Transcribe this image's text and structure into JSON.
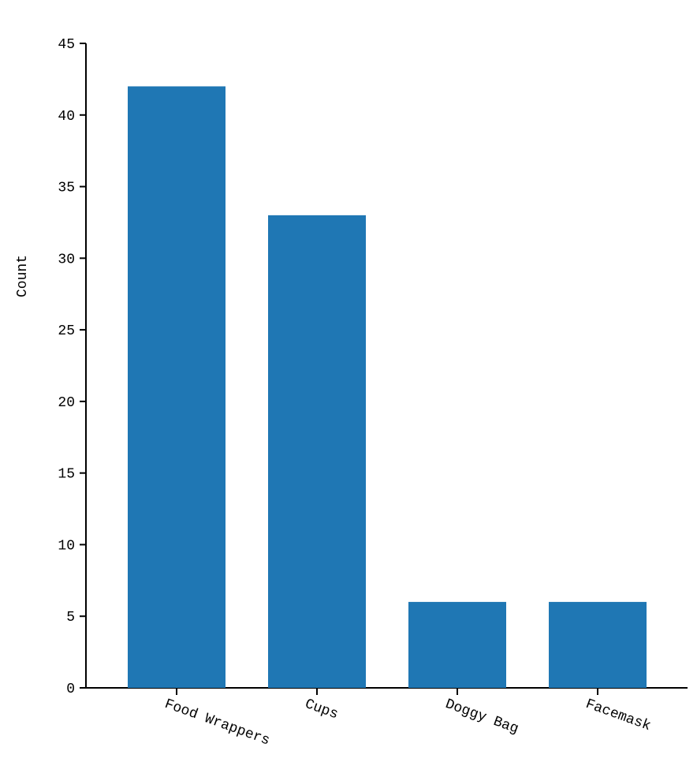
{
  "chart_data": {
    "type": "bar",
    "y_label": "Count",
    "categories": [
      "Food Wrappers",
      "Cups",
      "Doggy Bag",
      "Facemask"
    ],
    "values": [
      42,
      33,
      6,
      6
    ],
    "color": "#1f77b4",
    "ylim": [
      0,
      45
    ],
    "yticks": [
      0,
      5,
      10,
      15,
      20,
      25,
      30,
      35,
      40,
      45
    ]
  }
}
